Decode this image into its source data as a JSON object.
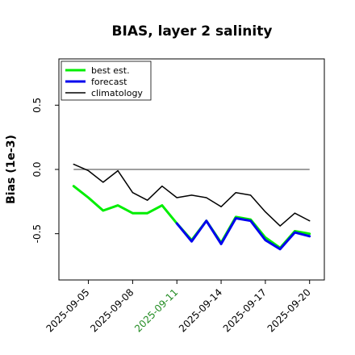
{
  "chart_data": {
    "type": "line",
    "title": "BIAS, layer 2 salinity",
    "ylabel": "Bias (1e-3)",
    "xlabel": "",
    "ylim": [
      -0.86,
      0.86
    ],
    "xlim": [
      "2025-09-03",
      "2025-09-21"
    ],
    "grid": false,
    "legend_position": "top-left",
    "x": [
      "2025-09-04",
      "2025-09-05",
      "2025-09-06",
      "2025-09-07",
      "2025-09-08",
      "2025-09-09",
      "2025-09-10",
      "2025-09-11",
      "2025-09-12",
      "2025-09-13",
      "2025-09-14",
      "2025-09-15",
      "2025-09-16",
      "2025-09-17",
      "2025-09-18",
      "2025-09-19",
      "2025-09-20"
    ],
    "x_ticks": [
      "2025-09-05",
      "2025-09-08",
      "2025-09-11",
      "2025-09-14",
      "2025-09-17",
      "2025-09-20"
    ],
    "x_tick_colors": [
      "#000000",
      "#000000",
      "#228B22",
      "#000000",
      "#000000",
      "#000000"
    ],
    "y_ticks": [
      {
        "value": 0.5,
        "label": "0.5"
      },
      {
        "value": 0.0,
        "label": "0.0"
      },
      {
        "value": -0.5,
        "label": "-0.5"
      }
    ],
    "reference_line": 0.0,
    "series": [
      {
        "name": "best est.",
        "color": "#00ee00",
        "width": 3,
        "values": [
          -0.13,
          -0.22,
          -0.32,
          -0.28,
          -0.34,
          -0.34,
          -0.28,
          -0.42,
          -0.55,
          -0.4,
          -0.57,
          -0.37,
          -0.39,
          -0.53,
          -0.61,
          -0.48,
          -0.5
        ]
      },
      {
        "name": "forecast",
        "color": "#0000ee",
        "width": 3,
        "values": [
          null,
          null,
          null,
          null,
          null,
          null,
          null,
          -0.42,
          -0.56,
          -0.4,
          -0.58,
          -0.38,
          -0.4,
          -0.55,
          -0.62,
          -0.49,
          -0.52
        ]
      },
      {
        "name": "climatology",
        "color": "#000000",
        "width": 1.5,
        "values": [
          0.04,
          -0.01,
          -0.1,
          -0.01,
          -0.18,
          -0.24,
          -0.13,
          -0.22,
          -0.2,
          -0.22,
          -0.29,
          -0.18,
          -0.2,
          -0.33,
          -0.44,
          -0.34,
          -0.4
        ]
      }
    ]
  }
}
